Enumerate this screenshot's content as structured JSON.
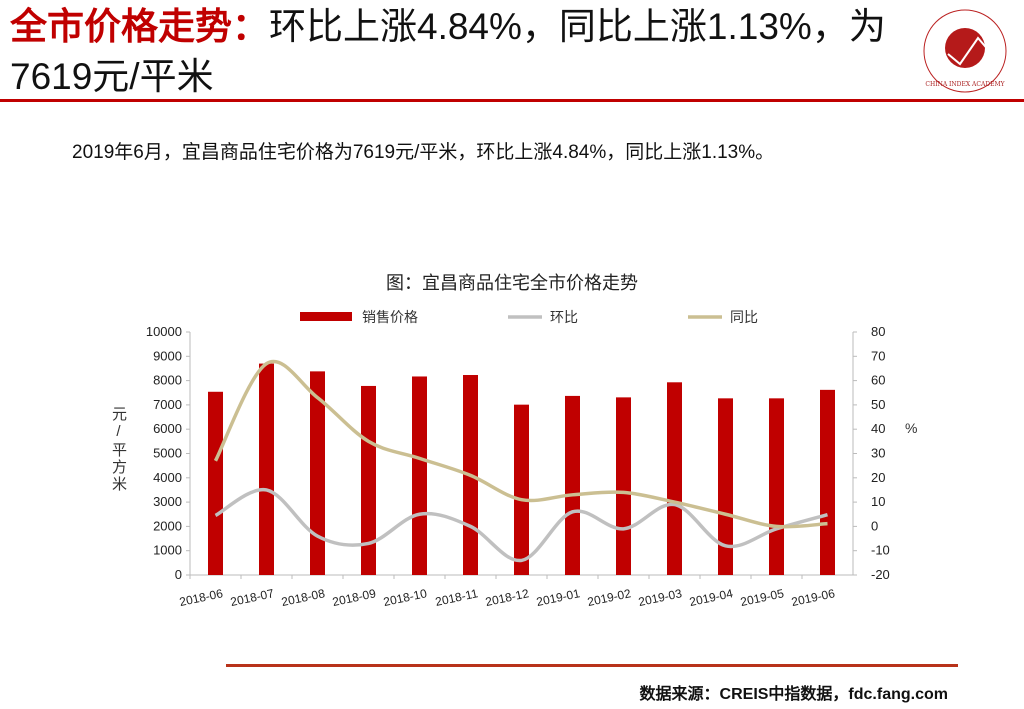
{
  "header": {
    "title_highlight": "全市价格走势：",
    "title_rest": "环比上涨4.84%，同比上涨1.13%，为7619元/平米",
    "logo_text": "中国指数研究院 CHINA INDEX ACADEMY 中指"
  },
  "summary": "2019年6月，宜昌商品住宅价格为7619元/平米，环比上涨4.84%，同比上涨1.13%。",
  "source": "数据来源：CREIS中指数据，fdc.fang.com",
  "colors": {
    "accent": "#c00000",
    "bar": "#c00000",
    "mom": "#c0c0c0",
    "yoy": "#cbbf92"
  },
  "chart_data": {
    "type": "bar+line",
    "title": "图：宜昌商品住宅全市价格走势",
    "categories": [
      "2018-06",
      "2018-07",
      "2018-08",
      "2018-09",
      "2018-10",
      "2018-11",
      "2018-12",
      "2019-01",
      "2019-02",
      "2019-03",
      "2019-04",
      "2019-05",
      "2019-06"
    ],
    "series": [
      {
        "name": "销售价格",
        "type": "bar",
        "axis": "left",
        "values": [
          7540,
          8700,
          8380,
          7780,
          8170,
          8230,
          7010,
          7370,
          7310,
          7930,
          7270,
          7270,
          7619
        ]
      },
      {
        "name": "环比",
        "type": "line",
        "axis": "right",
        "values": [
          4.5,
          15,
          -4,
          -7,
          5,
          0,
          -14,
          6,
          -1,
          9,
          -8,
          -1,
          4.84
        ]
      },
      {
        "name": "同比",
        "type": "line",
        "axis": "right",
        "values": [
          27,
          67,
          53,
          35,
          28,
          21,
          11,
          13,
          14,
          10,
          5,
          0,
          1.13
        ]
      }
    ],
    "ylabel": "元/平方米",
    "y2label": "%",
    "ylim": [
      0,
      10000
    ],
    "y2lim": [
      -20,
      80
    ],
    "yticks": [
      "0",
      "1000",
      "2000",
      "3000",
      "4000",
      "5000",
      "6000",
      "7000",
      "8000",
      "9000",
      "10000"
    ],
    "y2ticks": [
      "-20",
      "-10",
      "0",
      "10",
      "20",
      "30",
      "40",
      "50",
      "60",
      "70",
      "80"
    ],
    "legend": "top",
    "grid": false
  }
}
